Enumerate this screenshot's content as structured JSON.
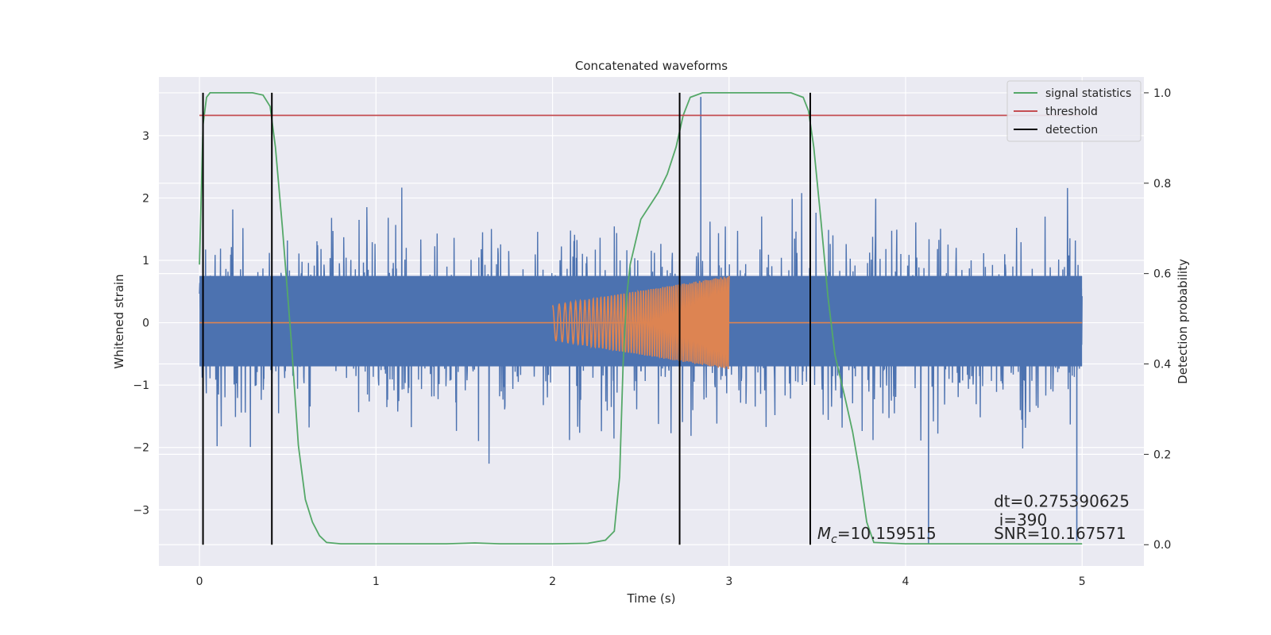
{
  "chart_data": {
    "type": "line",
    "title": "Concatenated waveforms",
    "xlabel": "Time (s)",
    "ylabel": "Whitened strain",
    "y2label": "Detection probability",
    "xlim": [
      -0.23,
      5.35
    ],
    "ylim": [
      -3.9,
      3.94
    ],
    "y2lim": [
      -0.047,
      1.035
    ],
    "xticks": [
      0,
      1,
      2,
      3,
      4,
      5
    ],
    "yticks": [
      -3,
      -2,
      -1,
      0,
      1,
      2,
      3
    ],
    "y2ticks": [
      0.0,
      0.2,
      0.4,
      0.6,
      0.8,
      1.0
    ],
    "grid": true,
    "legend_position": "top-right",
    "legend": [
      "signal statistics",
      "threshold",
      "detection"
    ],
    "colors": {
      "noise": "#4c72b0",
      "injection": "#dd8452",
      "signal statistics": "#55a868",
      "threshold": "#c44e52",
      "detection": "#000000",
      "background": "#eaeaf2"
    },
    "series": [
      {
        "name": "signal statistics",
        "axis": "right",
        "x": [
          0.0,
          0.02,
          0.04,
          0.06,
          0.1,
          0.2,
          0.3,
          0.36,
          0.4,
          0.43,
          0.47,
          0.52,
          0.56,
          0.6,
          0.64,
          0.68,
          0.72,
          0.8,
          1.0,
          1.4,
          1.56,
          1.7,
          2.0,
          2.2,
          2.3,
          2.35,
          2.38,
          2.4,
          2.42,
          2.44,
          2.47,
          2.5,
          2.55,
          2.6,
          2.65,
          2.7,
          2.74,
          2.78,
          2.85,
          3.0,
          3.2,
          3.35,
          3.42,
          3.45,
          3.48,
          3.52,
          3.56,
          3.6,
          3.66,
          3.7,
          3.74,
          3.78,
          3.82,
          4.0,
          4.5,
          5.0
        ],
        "values": [
          0.62,
          0.93,
          0.99,
          1.0,
          1.0,
          1.0,
          1.0,
          0.995,
          0.97,
          0.88,
          0.7,
          0.45,
          0.22,
          0.1,
          0.05,
          0.02,
          0.005,
          0.002,
          0.002,
          0.002,
          0.004,
          0.002,
          0.002,
          0.003,
          0.01,
          0.03,
          0.15,
          0.4,
          0.55,
          0.62,
          0.67,
          0.72,
          0.75,
          0.78,
          0.82,
          0.88,
          0.95,
          0.99,
          1.0,
          1.0,
          1.0,
          1.0,
          0.99,
          0.96,
          0.88,
          0.72,
          0.55,
          0.42,
          0.32,
          0.25,
          0.16,
          0.05,
          0.005,
          0.002,
          0.002,
          0.002
        ]
      },
      {
        "name": "threshold",
        "axis": "right",
        "x": [
          0.0,
          5.0
        ],
        "values": [
          0.95,
          0.95
        ]
      }
    ],
    "noise_series": {
      "axis": "left",
      "x_range": [
        0.0,
        5.0
      ],
      "core_band": [
        -0.7,
        0.75
      ],
      "peak_range": [
        -3.55,
        3.62
      ],
      "notable_peaks": [
        {
          "x": 2.84,
          "y": 3.62
        },
        {
          "x": 3.46,
          "y": 3.55
        },
        {
          "x": 4.13,
          "y": -3.55
        },
        {
          "x": 4.97,
          "y": -3.5
        }
      ]
    },
    "injection_series": {
      "axis": "left",
      "x_range": [
        2.0,
        3.0
      ],
      "envelope": [
        [
          2.0,
          0.28
        ],
        [
          3.0,
          0.75
        ]
      ],
      "baseline": 0
    },
    "detections": [
      0.02,
      0.41,
      2.72,
      3.46
    ],
    "annotations": [
      {
        "text": "dt=0.275390625",
        "x": 4.5,
        "y": -2.95
      },
      {
        "text": "i=390",
        "x": 4.53,
        "y": -3.25
      },
      {
        "text": "SNR=10.167571",
        "x": 4.5,
        "y": -3.47
      },
      {
        "text": "=10.159515",
        "prefix_symbol": "M",
        "prefix_subscript": "c",
        "x": 3.5,
        "y": -3.47
      }
    ]
  }
}
